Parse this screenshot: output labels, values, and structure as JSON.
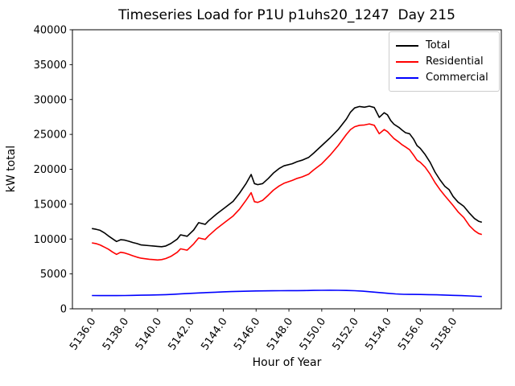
{
  "figure": {
    "title": "Timeseries Load for P1U p1uhs20_1247  Day 215",
    "xlabel": "Hour of Year",
    "ylabel": "kW total"
  },
  "legend": {
    "position": "upper right",
    "items": [
      {
        "label": "Total",
        "color": "#000000"
      },
      {
        "label": "Residential",
        "color": "#ff0000"
      },
      {
        "label": "Commercial",
        "color": "#0000ff"
      }
    ]
  },
  "chart_data": {
    "type": "line",
    "title": "Timeseries Load for P1U p1uhs20_1247  Day 215",
    "xlabel": "Hour of Year",
    "ylabel": "kW total",
    "grid": false,
    "legend_position": "upper right",
    "xlim": [
      5134.8125,
      5160.9375
    ],
    "ylim": [
      0,
      40000
    ],
    "x_ticks": {
      "values": [
        5136,
        5138,
        5140,
        5142,
        5144,
        5146,
        5148,
        5150,
        5152,
        5154,
        5156,
        5158
      ],
      "labels": [
        "5136.0",
        "5138.0",
        "5140.0",
        "5142.0",
        "5144.0",
        "5146.0",
        "5148.0",
        "5150.0",
        "5152.0",
        "5154.0",
        "5156.0",
        "5158.0"
      ],
      "rotation": -55
    },
    "y_ticks": {
      "values": [
        0,
        5000,
        10000,
        15000,
        20000,
        25000,
        30000,
        35000,
        40000
      ],
      "labels": [
        "0",
        "5000",
        "10000",
        "15000",
        "20000",
        "25000",
        "30000",
        "35000",
        "40000"
      ]
    },
    "series": [
      {
        "name": "Total",
        "color": "#000000",
        "x": [
          5136.0,
          5136.25,
          5136.5,
          5136.75,
          5137.0,
          5137.25,
          5137.5,
          5137.75,
          5138.0,
          5138.25,
          5138.5,
          5138.75,
          5139.0,
          5139.5,
          5139.75,
          5140.0,
          5140.25,
          5140.5,
          5140.8,
          5141.2,
          5141.4,
          5141.8,
          5142.2,
          5142.5,
          5142.9,
          5143.1,
          5143.6,
          5144.1,
          5144.6,
          5145.0,
          5145.4,
          5145.7,
          5145.9,
          5146.1,
          5146.4,
          5146.75,
          5147.05,
          5147.4,
          5147.7,
          5148.2,
          5148.5,
          5148.8,
          5149.2,
          5149.5,
          5150.0,
          5150.5,
          5151.0,
          5151.5,
          5151.75,
          5152.0,
          5152.3,
          5152.6,
          5152.9,
          5153.2,
          5153.5,
          5153.8,
          5154.0,
          5154.2,
          5154.4,
          5154.7,
          5154.9,
          5155.1,
          5155.35,
          5155.6,
          5155.8,
          5156.0,
          5156.3,
          5156.6,
          5156.9,
          5157.2,
          5157.5,
          5157.75,
          5158.0,
          5158.3,
          5158.65,
          5159.0,
          5159.3,
          5159.55,
          5159.75
        ],
        "y": [
          11500,
          11400,
          11250,
          10900,
          10450,
          10050,
          9650,
          9900,
          9850,
          9680,
          9500,
          9350,
          9150,
          9050,
          9000,
          8950,
          8900,
          9000,
          9350,
          10000,
          10600,
          10400,
          11300,
          12350,
          12100,
          12600,
          13600,
          14500,
          15400,
          16600,
          18000,
          19250,
          17950,
          17800,
          17950,
          18700,
          19450,
          20100,
          20500,
          20800,
          21100,
          21300,
          21700,
          22300,
          23400,
          24500,
          25700,
          27200,
          28200,
          28800,
          29000,
          28900,
          29050,
          28850,
          27450,
          28100,
          27800,
          27000,
          26450,
          26000,
          25600,
          25250,
          25100,
          24300,
          23400,
          23000,
          22100,
          21000,
          19600,
          18500,
          17550,
          17100,
          16100,
          15300,
          14700,
          13700,
          12950,
          12550,
          12400
        ]
      },
      {
        "name": "Residential",
        "color": "#ff0000",
        "x": [
          5136.0,
          5136.25,
          5136.5,
          5136.75,
          5137.0,
          5137.25,
          5137.5,
          5137.75,
          5138.0,
          5138.25,
          5138.5,
          5138.75,
          5139.0,
          5139.5,
          5139.75,
          5140.0,
          5140.25,
          5140.5,
          5140.8,
          5141.2,
          5141.4,
          5141.8,
          5142.2,
          5142.5,
          5142.9,
          5143.1,
          5143.6,
          5144.1,
          5144.6,
          5145.0,
          5145.4,
          5145.7,
          5145.9,
          5146.1,
          5146.4,
          5146.75,
          5147.05,
          5147.4,
          5147.7,
          5148.2,
          5148.5,
          5148.8,
          5149.2,
          5149.5,
          5150.0,
          5150.5,
          5151.0,
          5151.5,
          5151.75,
          5152.0,
          5152.3,
          5152.6,
          5152.9,
          5153.2,
          5153.5,
          5153.8,
          5154.0,
          5154.2,
          5154.4,
          5154.7,
          5154.9,
          5155.1,
          5155.35,
          5155.6,
          5155.8,
          5156.0,
          5156.3,
          5156.6,
          5156.9,
          5157.2,
          5157.5,
          5157.75,
          5158.0,
          5158.3,
          5158.65,
          5159.0,
          5159.3,
          5159.55,
          5159.75
        ],
        "y": [
          9450,
          9350,
          9150,
          8850,
          8550,
          8150,
          7800,
          8100,
          8000,
          7800,
          7600,
          7400,
          7250,
          7100,
          7050,
          7000,
          7050,
          7200,
          7500,
          8100,
          8600,
          8400,
          9300,
          10150,
          9950,
          10450,
          11500,
          12400,
          13300,
          14300,
          15600,
          16650,
          15350,
          15250,
          15550,
          16300,
          17000,
          17600,
          18000,
          18400,
          18700,
          18900,
          19300,
          19900,
          20800,
          22000,
          23400,
          25000,
          25700,
          26100,
          26300,
          26350,
          26500,
          26300,
          25100,
          25700,
          25400,
          24900,
          24400,
          23900,
          23500,
          23200,
          22800,
          22000,
          21300,
          21000,
          20300,
          19300,
          18100,
          17100,
          16200,
          15500,
          14800,
          13900,
          13100,
          11900,
          11200,
          10800,
          10650
        ]
      },
      {
        "name": "Commercial",
        "color": "#0000ff",
        "x": [
          5136.0,
          5136.5,
          5137.0,
          5137.5,
          5138.0,
          5138.5,
          5139.0,
          5139.5,
          5140.0,
          5140.5,
          5141.0,
          5141.5,
          5142.0,
          5142.5,
          5143.0,
          5143.5,
          5144.0,
          5144.5,
          5145.0,
          5145.5,
          5146.0,
          5146.5,
          5147.0,
          5147.5,
          5148.0,
          5148.5,
          5149.0,
          5149.5,
          5150.0,
          5150.5,
          5151.0,
          5151.5,
          5152.0,
          5152.5,
          5153.0,
          5153.5,
          5154.0,
          5154.5,
          5155.0,
          5155.5,
          5156.0,
          5156.5,
          5157.0,
          5157.5,
          5158.0,
          5158.5,
          5159.0,
          5159.5,
          5159.75
        ],
        "y": [
          1900,
          1890,
          1890,
          1890,
          1900,
          1920,
          1950,
          1970,
          1990,
          2030,
          2090,
          2150,
          2210,
          2270,
          2330,
          2380,
          2430,
          2470,
          2500,
          2530,
          2560,
          2570,
          2580,
          2590,
          2600,
          2610,
          2620,
          2640,
          2650,
          2660,
          2650,
          2630,
          2590,
          2520,
          2430,
          2330,
          2220,
          2130,
          2080,
          2060,
          2050,
          2030,
          2000,
          1970,
          1930,
          1890,
          1840,
          1790,
          1760
        ]
      }
    ]
  }
}
